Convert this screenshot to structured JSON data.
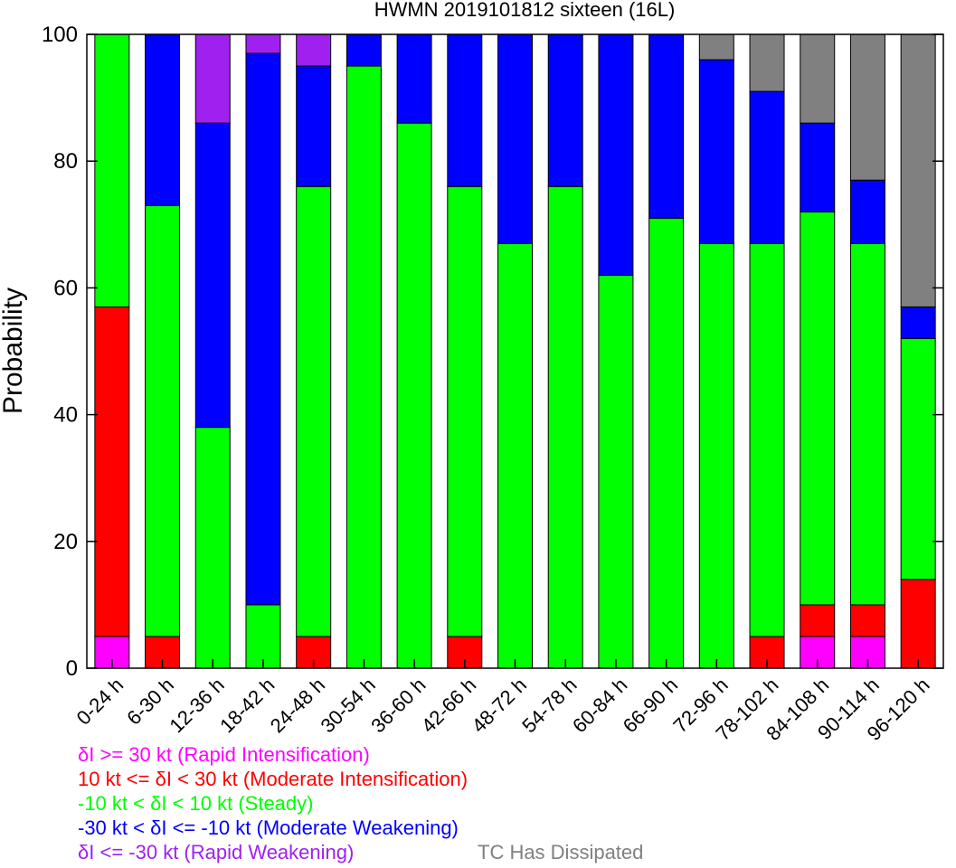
{
  "chart_data": {
    "type": "bar",
    "stacked": true,
    "title": "HWMN 2019101812 sixteen (16L)",
    "xlabel": "",
    "ylabel": "Probability",
    "ylim": [
      0,
      100
    ],
    "yticks": [
      0,
      20,
      40,
      60,
      80,
      100
    ],
    "grid": false,
    "categories": [
      "0-24 h",
      "6-30 h",
      "12-36 h",
      "18-42 h",
      "24-48 h",
      "30-54 h",
      "36-60 h",
      "42-66 h",
      "48-72 h",
      "54-78 h",
      "60-84 h",
      "66-90 h",
      "72-96 h",
      "78-102 h",
      "84-108 h",
      "90-114 h",
      "96-120 h"
    ],
    "series": [
      {
        "name": "δI >= 30 kt (Rapid Intensification)",
        "color": "#ff00ff",
        "values": [
          5,
          0,
          0,
          0,
          0,
          0,
          0,
          0,
          0,
          0,
          0,
          0,
          0,
          0,
          5,
          5,
          0
        ]
      },
      {
        "name": "10 kt <= δI < 30 kt (Moderate Intensification)",
        "color": "#ff0000",
        "values": [
          52,
          5,
          0,
          0,
          5,
          0,
          0,
          5,
          0,
          0,
          0,
          0,
          0,
          5,
          5,
          5,
          14
        ]
      },
      {
        "name": "-10 kt < δI < 10 kt (Steady)",
        "color": "#00ff00",
        "values": [
          43,
          68,
          38,
          10,
          71,
          95,
          86,
          71,
          67,
          76,
          62,
          71,
          67,
          62,
          62,
          57,
          38
        ]
      },
      {
        "name": "-30 kt < δI <= -10 kt (Moderate Weakening)",
        "color": "#0000ff",
        "values": [
          0,
          27,
          48,
          87,
          19,
          5,
          14,
          24,
          33,
          24,
          38,
          29,
          29,
          24,
          14,
          10,
          5
        ]
      },
      {
        "name": "δI <= -30 kt (Rapid Weakening)",
        "color": "#a020f0",
        "values": [
          0,
          0,
          14,
          3,
          5,
          0,
          0,
          0,
          0,
          0,
          0,
          0,
          0,
          0,
          0,
          0,
          0
        ]
      },
      {
        "name": "TC Has Dissipated",
        "color": "#808080",
        "values": [
          0,
          0,
          0,
          0,
          0,
          0,
          0,
          0,
          0,
          0,
          0,
          0,
          4,
          9,
          14,
          23,
          43
        ]
      }
    ],
    "legend": [
      {
        "text": "δI >= 30 kt (Rapid Intensification)",
        "color": "#ff00ff"
      },
      {
        "text": "10 kt <= δI < 30 kt (Moderate Intensification)",
        "color": "#ff0000"
      },
      {
        "text": "-10 kt < δI < 10 kt (Steady)",
        "color": "#00ff00"
      },
      {
        "text": "-30 kt < δI <= -10 kt (Moderate Weakening)",
        "color": "#0000ff"
      },
      {
        "text": "δI <= -30 kt (Rapid Weakening)",
        "color": "#a020f0"
      },
      {
        "text": "TC Has Dissipated",
        "color": "#808080"
      }
    ],
    "legend_placement": "bottom-left"
  }
}
